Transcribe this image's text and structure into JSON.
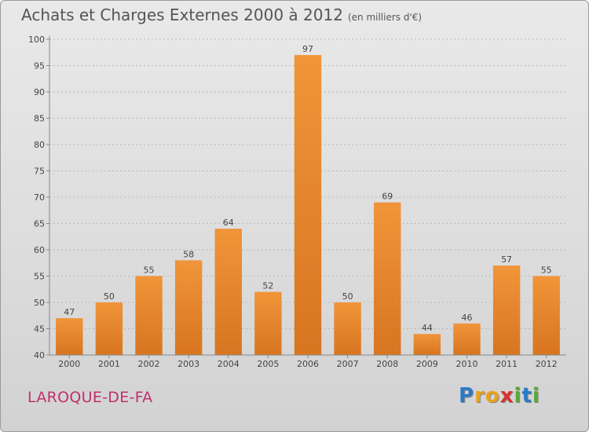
{
  "title": "Achats et Charges Externes 2000 à 2012",
  "subtitle": "(en milliers d'€)",
  "commune": "LAROQUE-DE-FA",
  "logo": {
    "letters": [
      "P",
      "r",
      "o",
      "x",
      "i",
      "t",
      "i"
    ],
    "colors": [
      "#2a7bc7",
      "#e8a21b",
      "#e8a21b",
      "#d8322e",
      "#5aa83a",
      "#2a7bc7",
      "#5aa83a"
    ]
  },
  "colors": {
    "bar": "#f0953a",
    "bar_dark": "#d87520",
    "axis": "#888888",
    "grid": "#b8b8b8"
  },
  "chart_data": {
    "type": "bar",
    "categories": [
      "2000",
      "2001",
      "2002",
      "2003",
      "2004",
      "2005",
      "2006",
      "2007",
      "2008",
      "2009",
      "2010",
      "2011",
      "2012"
    ],
    "values": [
      47,
      50,
      55,
      58,
      64,
      52,
      97,
      50,
      69,
      44,
      46,
      57,
      55
    ],
    "ylim": [
      40,
      100
    ],
    "yticks": [
      40,
      45,
      50,
      55,
      60,
      65,
      70,
      75,
      80,
      85,
      90,
      95,
      100
    ],
    "grid": true,
    "data_labels": true
  }
}
